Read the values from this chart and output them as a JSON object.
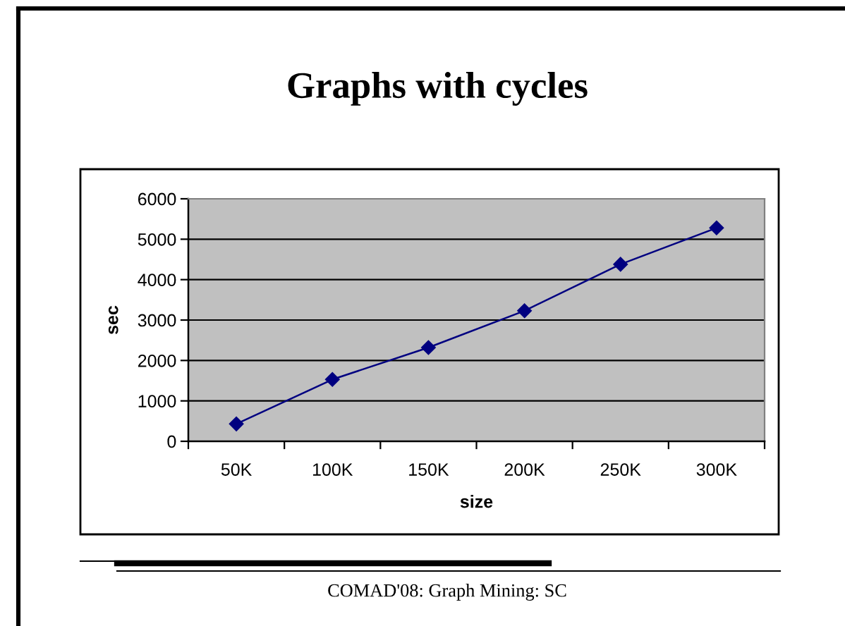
{
  "chart_data": {
    "type": "line",
    "title": "Graphs with cycles",
    "xlabel": "size",
    "ylabel": "sec",
    "categories": [
      "50K",
      "100K",
      "150K",
      "200K",
      "250K",
      "300K"
    ],
    "series": [
      {
        "color": "#000080",
        "values": [
          430,
          1530,
          2320,
          3230,
          4380,
          5280
        ]
      }
    ],
    "ylim": [
      0,
      6000
    ],
    "yticks": [
      0,
      1000,
      2000,
      3000,
      4000,
      5000,
      6000
    ],
    "grid": "y",
    "marker": "diamond",
    "line_style": "solid",
    "annotations": [
      "COMAD'08: Graph Mining: SC"
    ]
  }
}
